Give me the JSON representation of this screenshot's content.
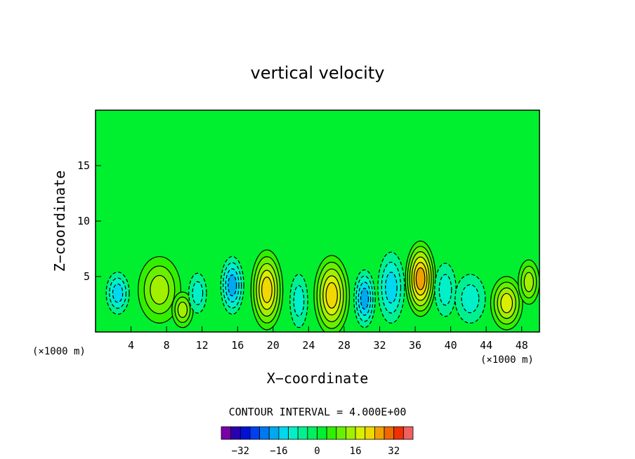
{
  "chart_data": {
    "type": "heatmap",
    "title": "vertical velocity",
    "xlabel": "X−coordinate",
    "ylabel": "Z−coordinate",
    "x_unit": "(×1000 m)",
    "y_unit": "(×1000 m)",
    "xlim": [
      0,
      50
    ],
    "ylim": [
      0,
      20
    ],
    "x_ticks": [
      4,
      8,
      12,
      16,
      20,
      24,
      28,
      32,
      36,
      40,
      44,
      48
    ],
    "x_tick_labels": [
      "4",
      "8",
      "12",
      "16",
      "20",
      "24",
      "28",
      "32",
      "36",
      "40",
      "44",
      "48"
    ],
    "y_ticks": [
      5,
      10,
      15
    ],
    "y_tick_labels": [
      "5",
      "10",
      "15"
    ],
    "background_value": 0,
    "contour_interval_label": "CONTOUR INTERVAL = 4.000E+00",
    "contour_interval": 4,
    "colorbar": {
      "levels": [
        -40,
        -36,
        -32,
        -28,
        -24,
        -20,
        -16,
        -12,
        -8,
        -4,
        0,
        4,
        8,
        12,
        16,
        20,
        24,
        28,
        32,
        36,
        40
      ],
      "colors": [
        "#7b00a8",
        "#2a00b0",
        "#0010d8",
        "#0040f0",
        "#0078f0",
        "#00a8f0",
        "#00d8f0",
        "#00f0c8",
        "#00f090",
        "#00f060",
        "#00f030",
        "#30f000",
        "#68f000",
        "#a0f000",
        "#d8f000",
        "#f0d800",
        "#f0a000",
        "#f06800",
        "#f03000",
        "#f06060"
      ],
      "tick_values": [
        -32,
        -16,
        0,
        16,
        32
      ],
      "tick_labels": [
        "−32",
        "−16",
        "0",
        "16",
        "32"
      ]
    },
    "features": [
      {
        "x": 2.5,
        "z": 3.5,
        "rx": 1.3,
        "rz": 1.9,
        "value": -12
      },
      {
        "x": 7.2,
        "z": 3.8,
        "rx": 2.4,
        "rz": 3.0,
        "value": 12
      },
      {
        "x": 9.8,
        "z": 2.0,
        "rx": 1.2,
        "rz": 1.6,
        "value": 12
      },
      {
        "x": 11.5,
        "z": 3.5,
        "rx": 1.0,
        "rz": 1.8,
        "value": -8
      },
      {
        "x": 15.4,
        "z": 4.2,
        "rx": 1.3,
        "rz": 2.6,
        "value": -16
      },
      {
        "x": 19.3,
        "z": 3.8,
        "rx": 1.8,
        "rz": 3.6,
        "value": 20
      },
      {
        "x": 22.9,
        "z": 2.8,
        "rx": 1.0,
        "rz": 2.4,
        "value": -8
      },
      {
        "x": 26.6,
        "z": 3.3,
        "rx": 2.0,
        "rz": 3.6,
        "value": 20
      },
      {
        "x": 30.3,
        "z": 3.0,
        "rx": 1.2,
        "rz": 2.6,
        "value": -16
      },
      {
        "x": 33.3,
        "z": 4.0,
        "rx": 1.5,
        "rz": 3.2,
        "value": -12
      },
      {
        "x": 36.6,
        "z": 4.8,
        "rx": 1.7,
        "rz": 3.4,
        "value": 24
      },
      {
        "x": 39.4,
        "z": 3.8,
        "rx": 1.2,
        "rz": 2.4,
        "value": -8
      },
      {
        "x": 42.2,
        "z": 3.0,
        "rx": 1.7,
        "rz": 2.2,
        "value": -8
      },
      {
        "x": 46.3,
        "z": 2.6,
        "rx": 1.8,
        "rz": 2.4,
        "value": 16
      },
      {
        "x": 48.8,
        "z": 4.5,
        "rx": 1.2,
        "rz": 2.0,
        "value": 12
      }
    ]
  }
}
